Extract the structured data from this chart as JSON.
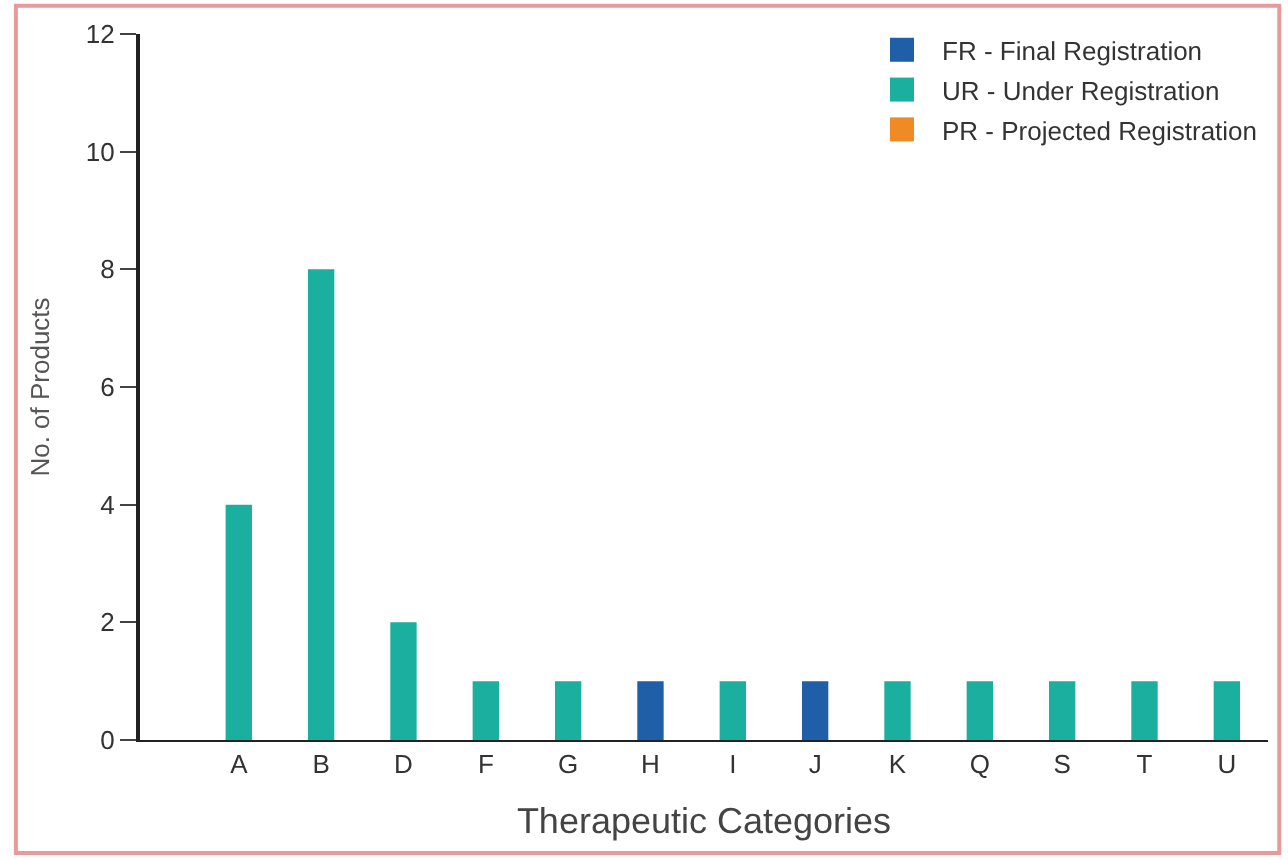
{
  "chart_data": {
    "type": "bar",
    "xlabel": "Therapeutic Categories",
    "ylabel": "No. of Products",
    "categories": [
      "A",
      "B",
      "D",
      "F",
      "G",
      "H",
      "I",
      "J",
      "K",
      "Q",
      "S",
      "T",
      "U"
    ],
    "series": [
      {
        "name": "FR - Final Registration",
        "color": "#1f5fa8",
        "values": [
          null,
          null,
          null,
          null,
          null,
          1,
          null,
          1,
          null,
          null,
          null,
          null,
          null
        ]
      },
      {
        "name": "UR - Under Registration",
        "color": "#1aaf9f",
        "values": [
          4,
          8,
          2,
          1,
          1,
          null,
          1,
          null,
          1,
          1,
          1,
          1,
          1
        ]
      },
      {
        "name": "PR - Projected Registration",
        "color": "#f08a24",
        "values": [
          null,
          null,
          null,
          null,
          null,
          null,
          null,
          null,
          null,
          null,
          null,
          null,
          null
        ]
      }
    ],
    "ylim": [
      0,
      12
    ],
    "yticks": [
      0,
      2,
      4,
      6,
      8,
      10,
      12
    ],
    "legend": "top right"
  }
}
